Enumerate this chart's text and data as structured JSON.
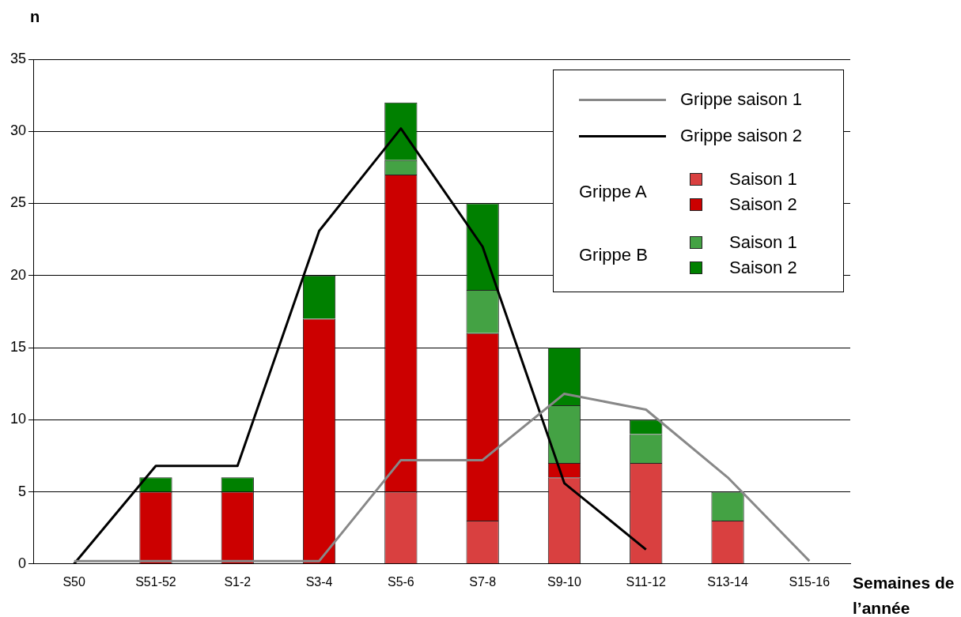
{
  "chart_data": {
    "type": "bar",
    "stacked": true,
    "ylabel": "n",
    "xlabel": "Semaines de l’année",
    "categories": [
      "S50",
      "S51-52",
      "S1-2",
      "S3-4",
      "S5-6",
      "S7-8",
      "S9-10",
      "S11-12",
      "S13-14",
      "S15-16"
    ],
    "series": [
      {
        "name": "Saison 1",
        "color": "#d94040",
        "values": [
          0,
          0,
          0,
          0,
          5,
          3,
          6,
          7,
          3,
          0
        ]
      },
      {
        "name": "Saison 2",
        "color": "#cc0000",
        "values": [
          0,
          5,
          5,
          17,
          22,
          13,
          1,
          0,
          0,
          0
        ]
      },
      {
        "name": "Saison 1",
        "color": "#44a244",
        "values": [
          0,
          0,
          0,
          0,
          1,
          3,
          4,
          2,
          2,
          0
        ]
      },
      {
        "name": "Saison 2",
        "color": "#008000",
        "values": [
          0,
          1,
          1,
          3,
          4,
          6,
          4,
          1,
          0,
          0
        ]
      },
      {
        "type": "line",
        "name": "Grippe saison 1",
        "color": "#888888",
        "values": [
          0.2,
          0.2,
          0.2,
          0.2,
          7.2,
          7.2,
          11.8,
          10.7,
          6,
          0.2
        ]
      },
      {
        "type": "line",
        "name": "Grippe saison 2",
        "color": "#000000",
        "values": [
          0,
          6.8,
          6.8,
          23.1,
          30.2,
          22,
          5.6,
          1,
          null,
          null
        ]
      }
    ],
    "annotations": [
      "Grippe A",
      "Grippe B"
    ],
    "ylim": [
      0,
      35
    ],
    "yticks": [
      0,
      5,
      10,
      15,
      20,
      25,
      30,
      35
    ],
    "grid": "y",
    "legend": "top right",
    "marker": "none",
    "line_style": "solid"
  }
}
